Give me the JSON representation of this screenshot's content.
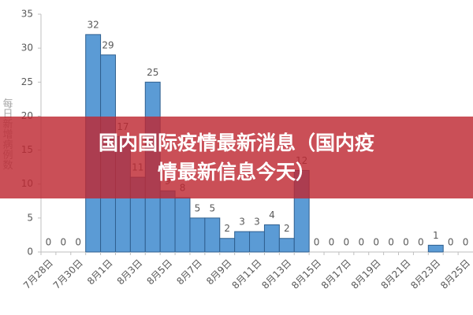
{
  "chart_data": {
    "type": "bar",
    "y_label": "每日新增病例数",
    "categories": [
      "7月28日",
      null,
      "7月30日",
      null,
      "8月1日",
      null,
      "8月3日",
      null,
      "8月5日",
      null,
      "8月7日",
      null,
      "8月9日",
      null,
      "8月11日",
      null,
      "8月13日",
      null,
      "8月15日",
      null,
      "8月17日",
      null,
      "8月19日",
      null,
      "8月21日",
      null,
      "8月23日",
      null,
      "8月25日"
    ],
    "values": [
      0,
      0,
      0,
      32,
      29,
      17,
      11,
      25,
      9,
      8,
      5,
      5,
      2,
      3,
      3,
      4,
      2,
      12,
      0,
      0,
      0,
      0,
      0,
      0,
      0,
      0,
      1,
      0,
      0
    ],
    "color": "#5b9bd5",
    "ylim": [
      0,
      35
    ],
    "yticks": [
      0,
      5,
      10,
      15,
      20,
      25,
      30,
      35
    ]
  },
  "banner": {
    "lines": [
      "国内国际疫情最新消息（国内疫",
      "情最新信息今天）"
    ]
  }
}
